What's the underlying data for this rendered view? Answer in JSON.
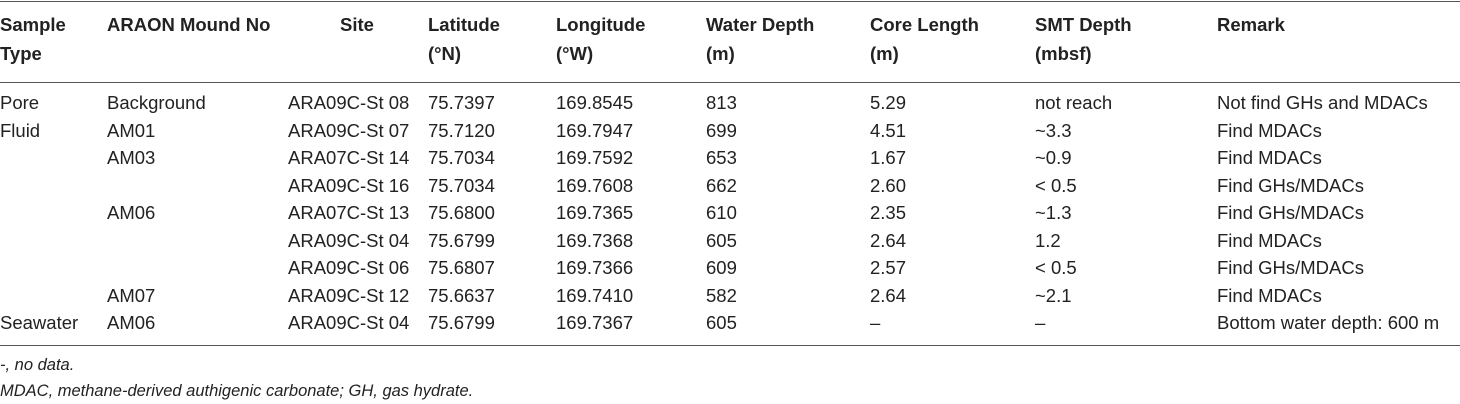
{
  "table": {
    "header": [
      [
        "Sample",
        "Type"
      ],
      [
        "ARAON Mound No"
      ],
      [
        "Site"
      ],
      [
        "Latitude",
        "(°N)"
      ],
      [
        "Longitude",
        "(°W)"
      ],
      [
        "Water Depth",
        "(m)"
      ],
      [
        "Core Length",
        "(m)"
      ],
      [
        "SMT Depth",
        "(mbsf)"
      ],
      [
        "Remark"
      ]
    ],
    "rows": [
      [
        "Pore",
        "Background",
        "ARA09C-St 08",
        "75.7397",
        "169.8545",
        "813",
        "5.29",
        "not reach",
        "Not find GHs and MDACs"
      ],
      [
        "Fluid",
        "AM01",
        "ARA09C-St 07",
        "75.7120",
        "169.7947",
        "699",
        "4.51",
        "~3.3",
        "Find MDACs"
      ],
      [
        null,
        "AM03",
        "ARA07C-St 14",
        "75.7034",
        "169.7592",
        "653",
        "1.67",
        "~0.9",
        "Find MDACs"
      ],
      [
        null,
        null,
        "ARA09C-St 16",
        "75.7034",
        "169.7608",
        "662",
        "2.60",
        "< 0.5",
        "Find GHs/MDACs"
      ],
      [
        null,
        "AM06",
        "ARA07C-St 13",
        "75.6800",
        "169.7365",
        "610",
        "2.35",
        "~1.3",
        "Find GHs/MDACs"
      ],
      [
        null,
        null,
        "ARA09C-St 04",
        "75.6799",
        "169.7368",
        "605",
        "2.64",
        "1.2",
        "Find MDACs"
      ],
      [
        null,
        null,
        "ARA09C-St 06",
        "75.6807",
        "169.7366",
        "609",
        "2.57",
        "< 0.5",
        "Find GHs/MDACs"
      ],
      [
        null,
        "AM07",
        "ARA09C-St 12",
        "75.6637",
        "169.7410",
        "582",
        "2.64",
        "~2.1",
        "Find MDACs"
      ],
      [
        "Seawater",
        "AM06",
        "ARA09C-St 04",
        "75.6799",
        "169.7367",
        "605",
        "–",
        "–",
        "Bottom water depth: 600 m"
      ]
    ]
  },
  "footnotes": [
    "-, no data.",
    "MDAC, methane-derived authigenic carbonate; GH, gas hydrate."
  ]
}
